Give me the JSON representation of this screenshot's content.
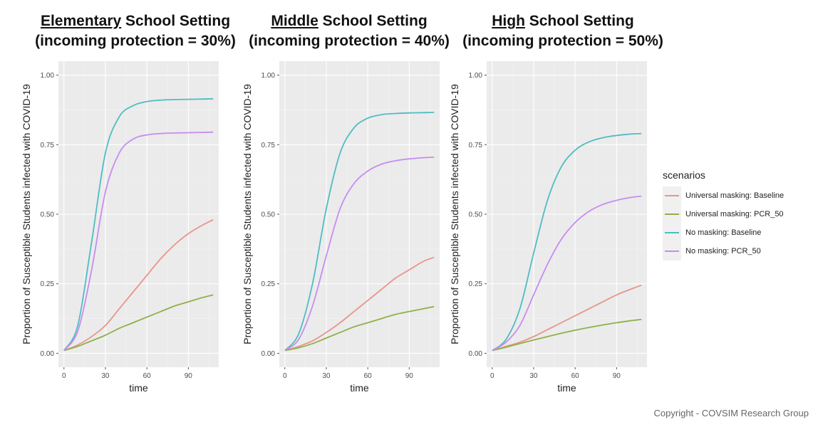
{
  "chart_data": [
    {
      "type": "line",
      "title_underlined": "Elementary",
      "title_rest": " School Setting",
      "title_line2": "(incoming protection = 30%)",
      "xlabel": "time",
      "ylabel": "Proportion of Susceptible Students infected with COVID-19",
      "xlim": [
        -4,
        112
      ],
      "ylim": [
        -0.05,
        1.05
      ],
      "xticks": [
        0,
        30,
        60,
        90
      ],
      "yticks": [
        "0.00",
        "0.25",
        "0.50",
        "0.75",
        "1.00"
      ],
      "x": [
        0,
        10,
        20,
        30,
        40,
        50,
        60,
        70,
        80,
        90,
        100,
        108
      ],
      "series": [
        {
          "name": "Universal masking: Baseline",
          "values": [
            0.01,
            0.03,
            0.06,
            0.1,
            0.16,
            0.22,
            0.28,
            0.34,
            0.39,
            0.43,
            0.46,
            0.48
          ]
        },
        {
          "name": "Universal masking: PCR_50",
          "values": [
            0.01,
            0.025,
            0.045,
            0.065,
            0.09,
            0.11,
            0.13,
            0.15,
            0.17,
            0.185,
            0.2,
            0.21
          ]
        },
        {
          "name": "No masking: Baseline",
          "values": [
            0.01,
            0.1,
            0.4,
            0.72,
            0.85,
            0.89,
            0.905,
            0.91,
            0.912,
            0.913,
            0.914,
            0.915
          ]
        },
        {
          "name": "No masking: PCR_50",
          "values": [
            0.01,
            0.08,
            0.3,
            0.58,
            0.72,
            0.77,
            0.785,
            0.79,
            0.792,
            0.793,
            0.794,
            0.795
          ]
        }
      ]
    },
    {
      "type": "line",
      "title_underlined": "Middle",
      "title_rest": " School Setting",
      "title_line2": "(incoming protection = 40%)",
      "xlabel": "time",
      "ylabel": "Proportion of Susceptible Students infected with COVID-19",
      "xlim": [
        -4,
        112
      ],
      "ylim": [
        -0.05,
        1.05
      ],
      "xticks": [
        0,
        30,
        60,
        90
      ],
      "yticks": [
        "0.00",
        "0.25",
        "0.50",
        "0.75",
        "1.00"
      ],
      "x": [
        0,
        10,
        20,
        30,
        40,
        50,
        60,
        70,
        80,
        90,
        100,
        108
      ],
      "series": [
        {
          "name": "Universal masking: Baseline",
          "values": [
            0.01,
            0.025,
            0.045,
            0.075,
            0.11,
            0.15,
            0.19,
            0.23,
            0.27,
            0.3,
            0.33,
            0.345
          ]
        },
        {
          "name": "Universal masking: PCR_50",
          "values": [
            0.01,
            0.02,
            0.035,
            0.055,
            0.075,
            0.095,
            0.11,
            0.125,
            0.14,
            0.15,
            0.16,
            0.168
          ]
        },
        {
          "name": "No masking: Baseline",
          "values": [
            0.01,
            0.07,
            0.25,
            0.52,
            0.72,
            0.81,
            0.845,
            0.858,
            0.862,
            0.864,
            0.865,
            0.866
          ]
        },
        {
          "name": "No masking: PCR_50",
          "values": [
            0.01,
            0.05,
            0.17,
            0.35,
            0.52,
            0.61,
            0.655,
            0.68,
            0.692,
            0.699,
            0.703,
            0.705
          ]
        }
      ]
    },
    {
      "type": "line",
      "title_underlined": "High",
      "title_rest": " School Setting",
      "title_line2": "(incoming protection = 50%)",
      "xlabel": "time",
      "ylabel": "Proportion of Susceptible Students infected with COVID-19",
      "xlim": [
        -4,
        112
      ],
      "ylim": [
        -0.05,
        1.05
      ],
      "xticks": [
        0,
        30,
        60,
        90
      ],
      "yticks": [
        "0.00",
        "0.25",
        "0.50",
        "0.75",
        "1.00"
      ],
      "x": [
        0,
        10,
        20,
        30,
        40,
        50,
        60,
        70,
        80,
        90,
        100,
        108
      ],
      "series": [
        {
          "name": "Universal masking: Baseline",
          "values": [
            0.01,
            0.025,
            0.04,
            0.06,
            0.085,
            0.11,
            0.135,
            0.16,
            0.185,
            0.21,
            0.23,
            0.245
          ]
        },
        {
          "name": "Universal masking: PCR_50",
          "values": [
            0.01,
            0.022,
            0.035,
            0.048,
            0.06,
            0.072,
            0.083,
            0.093,
            0.102,
            0.11,
            0.117,
            0.122
          ]
        },
        {
          "name": "No masking: Baseline",
          "values": [
            0.01,
            0.05,
            0.16,
            0.36,
            0.55,
            0.67,
            0.73,
            0.76,
            0.775,
            0.783,
            0.788,
            0.79
          ]
        },
        {
          "name": "No masking: PCR_50",
          "values": [
            0.01,
            0.04,
            0.1,
            0.21,
            0.32,
            0.41,
            0.47,
            0.51,
            0.535,
            0.55,
            0.56,
            0.565
          ]
        }
      ]
    }
  ],
  "legend": {
    "title": "scenarios",
    "items": [
      {
        "label": "Universal masking: Baseline",
        "color": "#e8958c"
      },
      {
        "label": "Universal masking: PCR_50",
        "color": "#8fb04a"
      },
      {
        "label": "No masking: Baseline",
        "color": "#4fbcc2"
      },
      {
        "label": "No masking: PCR_50",
        "color": "#c78cf0"
      }
    ]
  },
  "colors": {
    "panel_bg": "#ebebeb",
    "grid": "#ffffff"
  },
  "copyright": "Copyright - COVSIM Research Group"
}
